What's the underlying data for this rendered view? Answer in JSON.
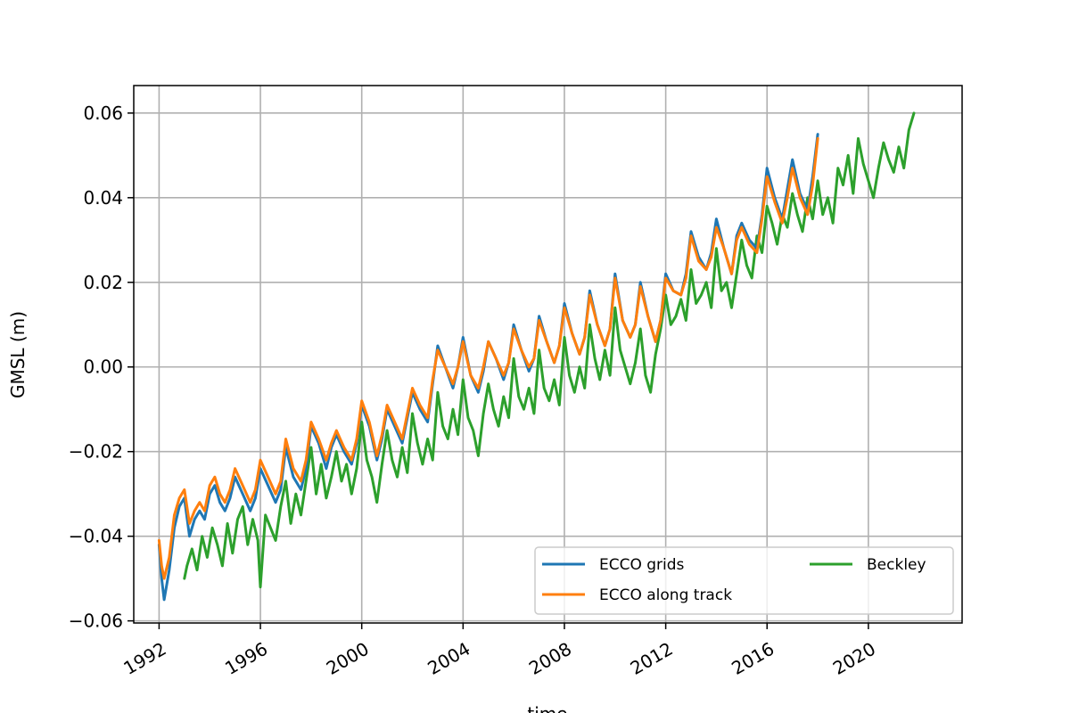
{
  "chart_data": {
    "type": "line",
    "title": "",
    "xlabel": "time",
    "ylabel": "GMSL (m)",
    "xlim": [
      1991.0,
      2023.7
    ],
    "ylim": [
      -0.0605,
      0.0665
    ],
    "xticks": [
      1992,
      1996,
      2000,
      2004,
      2008,
      2012,
      2016,
      2020
    ],
    "xtick_labels": [
      "1992",
      "1996",
      "2000",
      "2004",
      "2008",
      "2012",
      "2016",
      "2020"
    ],
    "yticks": [
      -0.06,
      -0.04,
      -0.02,
      0.0,
      0.02,
      0.04,
      0.06
    ],
    "ytick_labels": [
      "−0.06",
      "−0.04",
      "−0.02",
      "0.00",
      "0.02",
      "0.04",
      "0.06"
    ],
    "grid": true,
    "legend": {
      "placement": "lower-right",
      "columns": 2
    },
    "series": [
      {
        "name": "ECCO grids",
        "color": "#1f77b4",
        "x": [
          1992.0,
          1992.1,
          1992.2,
          1992.4,
          1992.6,
          1992.8,
          1993.0,
          1993.2,
          1993.4,
          1993.6,
          1993.8,
          1994.0,
          1994.2,
          1994.4,
          1994.6,
          1994.8,
          1995.0,
          1995.3,
          1995.6,
          1995.8,
          1996.0,
          1996.3,
          1996.6,
          1996.8,
          1997.0,
          1997.3,
          1997.6,
          1997.8,
          1998.0,
          1998.3,
          1998.6,
          1998.8,
          1999.0,
          1999.3,
          1999.6,
          1999.8,
          2000.0,
          2000.3,
          2000.6,
          2000.8,
          2001.0,
          2001.3,
          2001.6,
          2001.8,
          2002.0,
          2002.3,
          2002.6,
          2002.8,
          2003.0,
          2003.3,
          2003.6,
          2003.8,
          2004.0,
          2004.3,
          2004.6,
          2004.8,
          2005.0,
          2005.3,
          2005.6,
          2005.8,
          2006.0,
          2006.3,
          2006.6,
          2006.8,
          2007.0,
          2007.3,
          2007.6,
          2007.8,
          2008.0,
          2008.3,
          2008.6,
          2008.8,
          2009.0,
          2009.3,
          2009.6,
          2009.8,
          2010.0,
          2010.3,
          2010.6,
          2010.8,
          2011.0,
          2011.3,
          2011.6,
          2011.8,
          2012.0,
          2012.3,
          2012.6,
          2012.8,
          2013.0,
          2013.3,
          2013.6,
          2013.8,
          2014.0,
          2014.3,
          2014.6,
          2014.8,
          2015.0,
          2015.3,
          2015.6,
          2015.8,
          2016.0,
          2016.3,
          2016.6,
          2016.8,
          2017.0,
          2017.3,
          2017.6,
          2017.8,
          2018.0
        ],
        "y": [
          -0.042,
          -0.05,
          -0.055,
          -0.048,
          -0.038,
          -0.033,
          -0.031,
          -0.04,
          -0.036,
          -0.034,
          -0.036,
          -0.03,
          -0.028,
          -0.032,
          -0.034,
          -0.031,
          -0.026,
          -0.03,
          -0.034,
          -0.031,
          -0.024,
          -0.028,
          -0.032,
          -0.029,
          -0.019,
          -0.026,
          -0.029,
          -0.024,
          -0.014,
          -0.018,
          -0.024,
          -0.019,
          -0.016,
          -0.02,
          -0.023,
          -0.018,
          -0.009,
          -0.014,
          -0.022,
          -0.017,
          -0.01,
          -0.014,
          -0.018,
          -0.012,
          -0.006,
          -0.01,
          -0.013,
          -0.004,
          0.005,
          0.0,
          -0.005,
          0.0,
          0.007,
          -0.002,
          -0.006,
          -0.001,
          0.006,
          0.002,
          -0.003,
          0.001,
          0.01,
          0.004,
          -0.001,
          0.002,
          0.012,
          0.006,
          0.001,
          0.005,
          0.015,
          0.008,
          0.003,
          0.007,
          0.018,
          0.01,
          0.005,
          0.009,
          0.022,
          0.011,
          0.007,
          0.01,
          0.02,
          0.012,
          0.006,
          0.011,
          0.022,
          0.018,
          0.017,
          0.022,
          0.032,
          0.026,
          0.023,
          0.027,
          0.035,
          0.028,
          0.022,
          0.031,
          0.034,
          0.03,
          0.028,
          0.036,
          0.047,
          0.04,
          0.035,
          0.042,
          0.049,
          0.041,
          0.037,
          0.045,
          0.055
        ]
      },
      {
        "name": "ECCO along track",
        "color": "#ff7f0e",
        "x": [
          1992.0,
          1992.1,
          1992.2,
          1992.4,
          1992.6,
          1992.8,
          1993.0,
          1993.2,
          1993.4,
          1993.6,
          1993.8,
          1994.0,
          1994.2,
          1994.4,
          1994.6,
          1994.8,
          1995.0,
          1995.3,
          1995.6,
          1995.8,
          1996.0,
          1996.3,
          1996.6,
          1996.8,
          1997.0,
          1997.3,
          1997.6,
          1997.8,
          1998.0,
          1998.3,
          1998.6,
          1998.8,
          1999.0,
          1999.3,
          1999.6,
          1999.8,
          2000.0,
          2000.3,
          2000.6,
          2000.8,
          2001.0,
          2001.3,
          2001.6,
          2001.8,
          2002.0,
          2002.3,
          2002.6,
          2002.8,
          2003.0,
          2003.3,
          2003.6,
          2003.8,
          2004.0,
          2004.3,
          2004.6,
          2004.8,
          2005.0,
          2005.3,
          2005.6,
          2005.8,
          2006.0,
          2006.3,
          2006.6,
          2006.8,
          2007.0,
          2007.3,
          2007.6,
          2007.8,
          2008.0,
          2008.3,
          2008.6,
          2008.8,
          2009.0,
          2009.3,
          2009.6,
          2009.8,
          2010.0,
          2010.3,
          2010.6,
          2010.8,
          2011.0,
          2011.3,
          2011.6,
          2011.8,
          2012.0,
          2012.3,
          2012.6,
          2012.8,
          2013.0,
          2013.3,
          2013.6,
          2013.8,
          2014.0,
          2014.3,
          2014.6,
          2014.8,
          2015.0,
          2015.3,
          2015.6,
          2015.8,
          2016.0,
          2016.3,
          2016.6,
          2016.8,
          2017.0,
          2017.3,
          2017.6,
          2017.8,
          2018.0
        ],
        "y": [
          -0.041,
          -0.047,
          -0.05,
          -0.045,
          -0.035,
          -0.031,
          -0.029,
          -0.037,
          -0.034,
          -0.032,
          -0.034,
          -0.028,
          -0.026,
          -0.03,
          -0.032,
          -0.029,
          -0.024,
          -0.028,
          -0.032,
          -0.029,
          -0.022,
          -0.026,
          -0.03,
          -0.027,
          -0.017,
          -0.024,
          -0.027,
          -0.022,
          -0.013,
          -0.017,
          -0.022,
          -0.018,
          -0.015,
          -0.019,
          -0.022,
          -0.017,
          -0.008,
          -0.013,
          -0.021,
          -0.016,
          -0.009,
          -0.013,
          -0.017,
          -0.011,
          -0.005,
          -0.009,
          -0.012,
          -0.003,
          0.004,
          0.0,
          -0.004,
          0.0,
          0.006,
          -0.002,
          -0.005,
          0.0,
          0.006,
          0.002,
          -0.002,
          0.001,
          0.009,
          0.004,
          0.0,
          0.002,
          0.011,
          0.006,
          0.001,
          0.005,
          0.014,
          0.008,
          0.003,
          0.007,
          0.017,
          0.01,
          0.005,
          0.009,
          0.021,
          0.011,
          0.007,
          0.01,
          0.019,
          0.012,
          0.006,
          0.011,
          0.021,
          0.018,
          0.017,
          0.021,
          0.031,
          0.025,
          0.023,
          0.026,
          0.033,
          0.028,
          0.022,
          0.03,
          0.033,
          0.029,
          0.027,
          0.035,
          0.045,
          0.039,
          0.034,
          0.04,
          0.047,
          0.04,
          0.036,
          0.043,
          0.054
        ]
      },
      {
        "name": "Beckley",
        "color": "#2ca02c",
        "x": [
          1993.0,
          1993.1,
          1993.3,
          1993.5,
          1993.7,
          1993.9,
          1994.1,
          1994.3,
          1994.5,
          1994.7,
          1994.9,
          1995.1,
          1995.3,
          1995.5,
          1995.7,
          1995.9,
          1996.0,
          1996.2,
          1996.4,
          1996.6,
          1996.8,
          1997.0,
          1997.2,
          1997.4,
          1997.6,
          1997.8,
          1998.0,
          1998.2,
          1998.4,
          1998.6,
          1998.8,
          1999.0,
          1999.2,
          1999.4,
          1999.6,
          1999.8,
          2000.0,
          2000.2,
          2000.4,
          2000.6,
          2000.8,
          2001.0,
          2001.2,
          2001.4,
          2001.6,
          2001.8,
          2002.0,
          2002.2,
          2002.4,
          2002.6,
          2002.8,
          2003.0,
          2003.2,
          2003.4,
          2003.6,
          2003.8,
          2004.0,
          2004.2,
          2004.4,
          2004.6,
          2004.8,
          2005.0,
          2005.2,
          2005.4,
          2005.6,
          2005.8,
          2006.0,
          2006.2,
          2006.4,
          2006.6,
          2006.8,
          2007.0,
          2007.2,
          2007.4,
          2007.6,
          2007.8,
          2008.0,
          2008.2,
          2008.4,
          2008.6,
          2008.8,
          2009.0,
          2009.2,
          2009.4,
          2009.6,
          2009.8,
          2010.0,
          2010.2,
          2010.4,
          2010.6,
          2010.8,
          2011.0,
          2011.2,
          2011.4,
          2011.6,
          2011.8,
          2012.0,
          2012.2,
          2012.4,
          2012.6,
          2012.8,
          2013.0,
          2013.2,
          2013.4,
          2013.6,
          2013.8,
          2014.0,
          2014.2,
          2014.4,
          2014.6,
          2014.8,
          2015.0,
          2015.2,
          2015.4,
          2015.6,
          2015.8,
          2016.0,
          2016.2,
          2016.4,
          2016.6,
          2016.8,
          2017.0,
          2017.2,
          2017.4,
          2017.6,
          2017.8,
          2018.0,
          2018.2,
          2018.4,
          2018.6,
          2018.8,
          2019.0,
          2019.2,
          2019.4,
          2019.6,
          2019.8,
          2020.0,
          2020.2,
          2020.4,
          2020.6,
          2020.8,
          2021.0,
          2021.2,
          2021.4,
          2021.6,
          2021.8
        ],
        "y": [
          -0.05,
          -0.047,
          -0.043,
          -0.048,
          -0.04,
          -0.045,
          -0.038,
          -0.042,
          -0.047,
          -0.037,
          -0.044,
          -0.036,
          -0.033,
          -0.042,
          -0.036,
          -0.041,
          -0.052,
          -0.035,
          -0.038,
          -0.041,
          -0.033,
          -0.027,
          -0.037,
          -0.03,
          -0.035,
          -0.027,
          -0.019,
          -0.03,
          -0.023,
          -0.031,
          -0.026,
          -0.02,
          -0.027,
          -0.023,
          -0.03,
          -0.024,
          -0.013,
          -0.022,
          -0.026,
          -0.032,
          -0.023,
          -0.015,
          -0.022,
          -0.026,
          -0.019,
          -0.025,
          -0.011,
          -0.018,
          -0.023,
          -0.017,
          -0.022,
          -0.006,
          -0.014,
          -0.017,
          -0.01,
          -0.016,
          -0.003,
          -0.012,
          -0.015,
          -0.021,
          -0.011,
          -0.004,
          -0.01,
          -0.014,
          -0.007,
          -0.012,
          0.002,
          -0.007,
          -0.01,
          -0.005,
          -0.011,
          0.004,
          -0.005,
          -0.008,
          -0.003,
          -0.009,
          0.007,
          -0.002,
          -0.006,
          0.0,
          -0.005,
          0.01,
          0.002,
          -0.003,
          0.004,
          -0.002,
          0.014,
          0.004,
          0.0,
          -0.004,
          0.001,
          0.009,
          -0.002,
          -0.006,
          0.003,
          0.009,
          0.017,
          0.01,
          0.012,
          0.016,
          0.011,
          0.023,
          0.015,
          0.017,
          0.02,
          0.014,
          0.028,
          0.018,
          0.02,
          0.014,
          0.022,
          0.03,
          0.024,
          0.021,
          0.031,
          0.027,
          0.038,
          0.034,
          0.029,
          0.036,
          0.033,
          0.041,
          0.036,
          0.032,
          0.04,
          0.035,
          0.044,
          0.036,
          0.04,
          0.034,
          0.047,
          0.043,
          0.05,
          0.041,
          0.054,
          0.048,
          0.044,
          0.04,
          0.047,
          0.053,
          0.049,
          0.046,
          0.052,
          0.047,
          0.056,
          0.06
        ]
      }
    ]
  }
}
